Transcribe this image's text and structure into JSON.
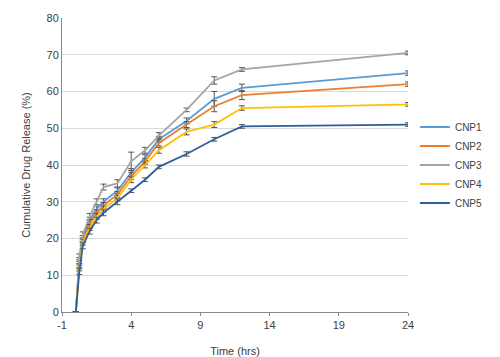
{
  "chart_data": {
    "type": "line",
    "x_label": "Time (hrs)",
    "y_label": "Cumulative Drug Release (%)",
    "x": [
      0,
      0.25,
      0.5,
      1,
      1.5,
      2,
      3,
      4,
      5,
      6,
      8,
      10,
      12,
      24
    ],
    "xlim": [
      -1,
      24
    ],
    "xticks": [
      -1,
      4,
      9,
      14,
      19,
      24
    ],
    "ylim": [
      0,
      80
    ],
    "yticks": [
      0,
      10,
      20,
      30,
      40,
      50,
      60,
      70,
      80
    ],
    "grid": true,
    "legend": "right",
    "series": [
      {
        "name": "CNP1",
        "color": "#5b9bd5",
        "values": [
          0,
          14,
          20,
          25,
          28,
          30,
          33,
          38,
          42,
          47,
          52,
          58,
          61,
          65
        ],
        "errors": [
          0,
          0.8,
          0.8,
          0.8,
          0.8,
          0.8,
          0.8,
          1,
          0.8,
          0.8,
          0.8,
          2,
          1,
          0.6
        ]
      },
      {
        "name": "CNP2",
        "color": "#ed7d31",
        "values": [
          0,
          13,
          20,
          24,
          27,
          29,
          32,
          37,
          41,
          46,
          51,
          56,
          59,
          62
        ],
        "errors": [
          0,
          0.8,
          0.8,
          0.8,
          0.8,
          0.8,
          0.8,
          1,
          0.8,
          0.8,
          0.8,
          1.5,
          1.2,
          0.6
        ]
      },
      {
        "name": "CNP3",
        "color": "#a5a5a5",
        "values": [
          0,
          15,
          21,
          26,
          30,
          34,
          35,
          41,
          44,
          48,
          55,
          63,
          66,
          70.5
        ],
        "errors": [
          0,
          0.8,
          0.8,
          0.8,
          0.8,
          0.8,
          1,
          2.5,
          0.8,
          0.8,
          0.5,
          1,
          0.5,
          0.5
        ]
      },
      {
        "name": "CNP4",
        "color": "#ffc000",
        "values": [
          0,
          12,
          19,
          23,
          26,
          28,
          31,
          36,
          40,
          44,
          49,
          51,
          55.5,
          56.5
        ],
        "errors": [
          0,
          0.8,
          0.8,
          0.8,
          0.8,
          0.8,
          0.8,
          0.8,
          0.8,
          0.8,
          0.8,
          0.8,
          0.6,
          0.5
        ]
      },
      {
        "name": "CNP5",
        "color": "#2f5f98",
        "values": [
          0,
          11,
          18,
          22,
          25,
          27,
          30,
          33,
          36,
          39.5,
          43,
          47,
          50.5,
          51
        ],
        "errors": [
          0,
          0.8,
          0.8,
          0.8,
          0.8,
          0.8,
          0.8,
          0.5,
          0.5,
          0.5,
          0.6,
          0.5,
          0.5,
          0.5
        ]
      }
    ]
  }
}
